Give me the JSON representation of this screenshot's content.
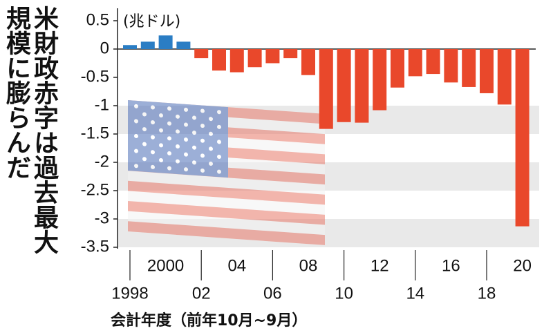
{
  "chart_data": {
    "type": "bar",
    "title": [
      "米財政赤字は過去最大",
      "規模に膨らんだ"
    ],
    "unit": "(兆ドル)",
    "x_label": "会計年度（前年10月~9月）",
    "categories": [
      "1998",
      null,
      "2000",
      null,
      "02",
      null,
      "04",
      null,
      "06",
      null,
      "08",
      null,
      "10",
      null,
      "12",
      null,
      "14",
      null,
      "16",
      null,
      "18",
      null,
      "20"
    ],
    "values": [
      0.07,
      0.13,
      0.24,
      0.13,
      -0.16,
      -0.38,
      -0.41,
      -0.32,
      -0.25,
      -0.16,
      -0.46,
      -1.41,
      -1.29,
      -1.3,
      -1.08,
      -0.68,
      -0.48,
      -0.44,
      -0.59,
      -0.67,
      -0.78,
      -0.98,
      -3.13
    ],
    "positive_color": "#2a7dc4",
    "negative_color": "#e9482b",
    "ylim": [
      -3.5,
      0.5
    ],
    "yticks": [
      0.5,
      0,
      -0.5,
      -1,
      -1.5,
      -2,
      -2.5,
      -3,
      -3.5
    ],
    "bands": true
  }
}
